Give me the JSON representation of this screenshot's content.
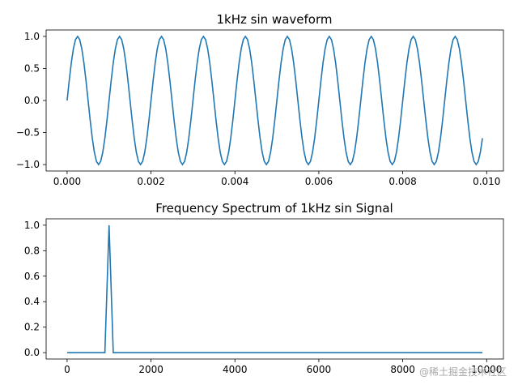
{
  "chart_data": [
    {
      "type": "line",
      "title": "1kHz sin waveform",
      "xlabel": "",
      "ylabel": "",
      "xlim": [
        -0.0005,
        0.0104
      ],
      "ylim": [
        -1.1,
        1.1
      ],
      "xticks": [
        0,
        0.002,
        0.004,
        0.006,
        0.008,
        0.01
      ],
      "xtick_labels": [
        "0.000",
        "0.002",
        "0.004",
        "0.006",
        "0.008",
        "0.010"
      ],
      "yticks": [
        -1,
        -0.5,
        0,
        0.5,
        1
      ],
      "ytick_labels": [
        "−1.0",
        "−0.5",
        "0.0",
        "0.5",
        "1.0"
      ],
      "series": [
        {
          "name": "sin",
          "frequency_hz": 1000,
          "amplitude": 1,
          "x_start": 0,
          "x_end": 0.0099,
          "x_step": 5e-05
        }
      ],
      "color": "#1f77b4"
    },
    {
      "type": "line",
      "title": "Frequency Spectrum of 1kHz sin Signal",
      "xlabel": "",
      "ylabel": "",
      "xlim": [
        -500,
        10400
      ],
      "ylim": [
        -0.05,
        1.05
      ],
      "xticks": [
        0,
        2000,
        4000,
        6000,
        8000,
        10000
      ],
      "xtick_labels": [
        "0",
        "2000",
        "4000",
        "6000",
        "8000",
        "10000"
      ],
      "yticks": [
        0,
        0.2,
        0.4,
        0.6,
        0.8,
        1.0
      ],
      "ytick_labels": [
        "0.0",
        "0.2",
        "0.4",
        "0.6",
        "0.8",
        "1.0"
      ],
      "series": [
        {
          "name": "spectrum",
          "x": [
            0,
            900,
            1000,
            1100,
            9900
          ],
          "y": [
            0,
            0,
            1,
            0,
            0
          ]
        }
      ],
      "color": "#1f77b4"
    }
  ],
  "watermark": "@稀土掘金技术社区"
}
